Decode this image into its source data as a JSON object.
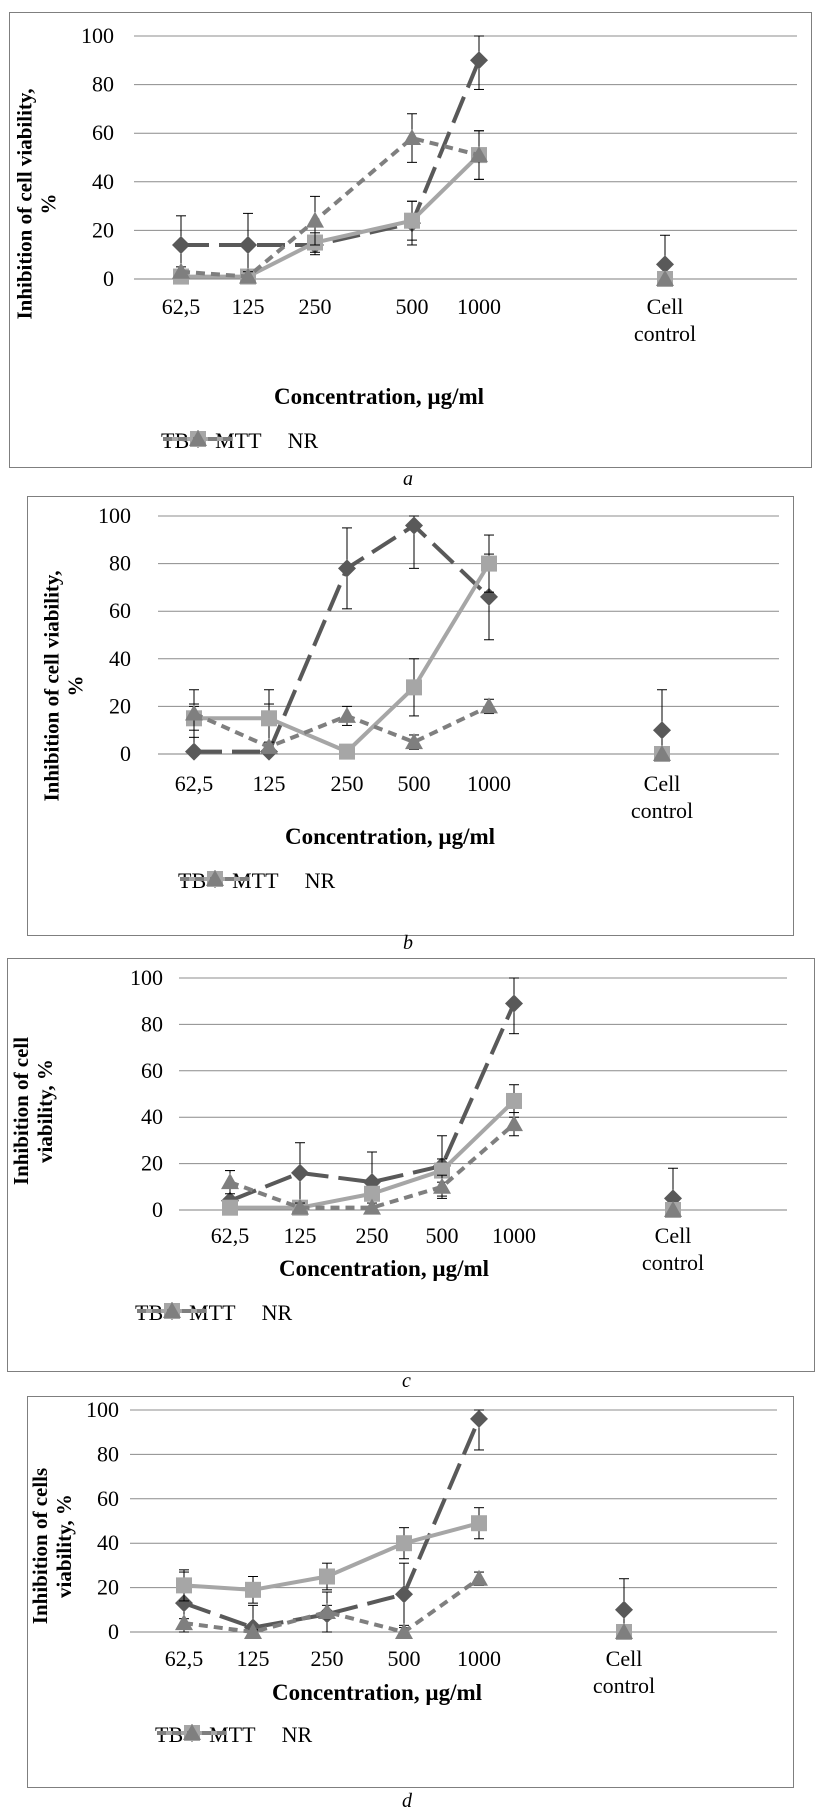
{
  "legend": {
    "tb": "TB",
    "mtt": "MTT",
    "nr": "NR"
  },
  "colors": {
    "tb": "#595959",
    "mtt": "#a6a6a6",
    "nr": "#7f7f7f",
    "grid": "#8c8c8c",
    "frame": "#7f7f7f"
  },
  "chart_data": [
    {
      "type": "line",
      "caption": "a",
      "ylabel_lines": [
        "Inhibition of cell viability,",
        "%"
      ],
      "xlabel": "Concentration, µg/ml",
      "categories": [
        "62,5",
        "125",
        "250",
        "500",
        "1000",
        "Cell control"
      ],
      "category_lines": [
        [
          "62,5"
        ],
        [
          "125"
        ],
        [
          "250"
        ],
        [
          "500"
        ],
        [
          "1000"
        ],
        [
          "Cell",
          "control"
        ]
      ],
      "yticks": [
        "0",
        "20",
        "40",
        "60",
        "80",
        "100"
      ],
      "ylim": [
        0,
        100
      ],
      "series": [
        {
          "name": "TB",
          "values": [
            14,
            14,
            14,
            23,
            90,
            6
          ],
          "errors": [
            12,
            13,
            4,
            9,
            12,
            12
          ]
        },
        {
          "name": "MTT",
          "values": [
            1,
            1,
            15,
            24,
            51,
            0
          ],
          "errors": [
            2,
            2,
            4,
            8,
            10,
            0
          ]
        },
        {
          "name": "NR",
          "values": [
            3,
            1,
            24,
            58,
            51,
            0
          ],
          "errors": [
            2,
            2,
            10,
            10,
            10,
            0
          ]
        }
      ]
    },
    {
      "type": "line",
      "caption": "b",
      "ylabel_lines": [
        "Inhibition of cell viability,",
        "%"
      ],
      "xlabel": "Concentration, µg/ml",
      "categories": [
        "62,5",
        "125",
        "250",
        "500",
        "1000",
        "Cell control"
      ],
      "category_lines": [
        [
          "62,5"
        ],
        [
          "125"
        ],
        [
          "250"
        ],
        [
          "500"
        ],
        [
          "1000"
        ],
        [
          "Cell",
          "control"
        ]
      ],
      "yticks": [
        "0",
        "20",
        "40",
        "60",
        "80",
        "100"
      ],
      "ylim": [
        0,
        100
      ],
      "series": [
        {
          "name": "TB",
          "values": [
            1,
            1,
            78,
            96,
            66,
            10
          ],
          "errors": [
            20,
            20,
            17,
            18,
            18,
            17
          ]
        },
        {
          "name": "MTT",
          "values": [
            15,
            15,
            1,
            28,
            80,
            0
          ],
          "errors": [
            5,
            12,
            2,
            12,
            12,
            0
          ]
        },
        {
          "name": "NR",
          "values": [
            17,
            3,
            16,
            5,
            20,
            0
          ],
          "errors": [
            10,
            2,
            4,
            3,
            3,
            0
          ]
        }
      ]
    },
    {
      "type": "line",
      "caption": "c",
      "ylabel_lines": [
        "Inhibition of cell",
        "viability, %"
      ],
      "xlabel": "Concentration, µg/ml",
      "categories": [
        "62,5",
        "125",
        "250",
        "500",
        "1000",
        "Cell control"
      ],
      "category_lines": [
        [
          "62,5"
        ],
        [
          "125"
        ],
        [
          "250"
        ],
        [
          "500"
        ],
        [
          "1000"
        ],
        [
          "Cell",
          "control"
        ]
      ],
      "yticks": [
        "0",
        "20",
        "40",
        "60",
        "80",
        "100"
      ],
      "ylim": [
        0,
        100
      ],
      "series": [
        {
          "name": "TB",
          "values": [
            4,
            16,
            12,
            19,
            89,
            5
          ],
          "errors": [
            13,
            13,
            13,
            13,
            13,
            13
          ]
        },
        {
          "name": "MTT",
          "values": [
            1,
            1,
            7,
            17,
            47,
            0
          ],
          "errors": [
            2,
            2,
            3,
            5,
            7,
            0
          ]
        },
        {
          "name": "NR",
          "values": [
            12,
            1,
            1,
            10,
            37,
            0
          ],
          "errors": [
            5,
            2,
            2,
            5,
            5,
            0
          ]
        }
      ]
    },
    {
      "type": "line",
      "caption": "d",
      "ylabel_lines": [
        "Inhibition of cells",
        "viability, %"
      ],
      "xlabel": "Concentration, µg/ml",
      "categories": [
        "62,5",
        "125",
        "250",
        "500",
        "1000",
        "Cell control"
      ],
      "category_lines": [
        [
          "62,5"
        ],
        [
          "125"
        ],
        [
          "250"
        ],
        [
          "500"
        ],
        [
          "1000"
        ],
        [
          "Cell",
          "control"
        ]
      ],
      "yticks": [
        "0",
        "20",
        "40",
        "60",
        "80",
        "100"
      ],
      "ylim": [
        0,
        100
      ],
      "series": [
        {
          "name": "TB",
          "values": [
            13,
            2,
            8,
            17,
            96,
            10
          ],
          "errors": [
            14,
            10,
            10,
            14,
            14,
            14
          ]
        },
        {
          "name": "MTT",
          "values": [
            21,
            19,
            25,
            40,
            49,
            0
          ],
          "errors": [
            7,
            6,
            6,
            7,
            7,
            0
          ]
        },
        {
          "name": "NR",
          "values": [
            4,
            0,
            9,
            0,
            24,
            0
          ],
          "errors": [
            2,
            1,
            3,
            2,
            3,
            0
          ]
        }
      ]
    }
  ]
}
